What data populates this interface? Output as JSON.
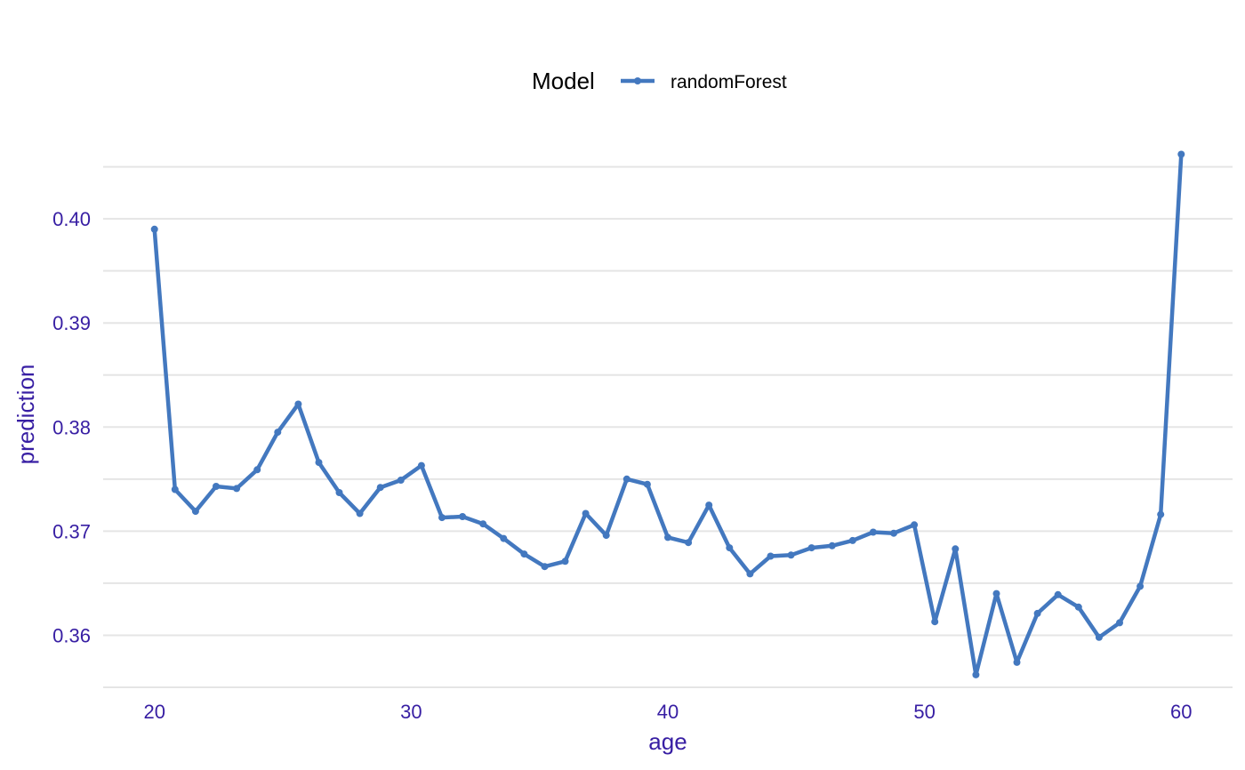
{
  "chart_data": {
    "type": "line",
    "legend": {
      "title": "Model",
      "position": "top"
    },
    "xlabel": "age",
    "ylabel": "prediction",
    "xlim": [
      18,
      62
    ],
    "ylim": [
      0.355,
      0.4065
    ],
    "x_ticks": [
      20,
      30,
      40,
      50,
      60
    ],
    "y_ticks": [
      0.36,
      0.37,
      0.38,
      0.39,
      0.4
    ],
    "y_tick_labels": [
      "0.36",
      "0.37",
      "0.38",
      "0.39",
      "0.40"
    ],
    "grid": true,
    "colors": {
      "series": "#4378bf",
      "text": "#371ea3",
      "grid": "#e5e5e5"
    },
    "series": [
      {
        "name": "randomForest",
        "x": [
          20,
          20.8,
          21.6,
          22.4,
          23.2,
          24.0,
          24.8,
          25.6,
          26.4,
          27.2,
          28.0,
          28.8,
          29.6,
          30.4,
          31.2,
          32.0,
          32.8,
          33.6,
          34.4,
          35.2,
          36.0,
          36.8,
          37.6,
          38.4,
          39.2,
          40.0,
          40.8,
          41.6,
          42.4,
          43.2,
          44.0,
          44.8,
          45.6,
          46.4,
          47.2,
          48.0,
          48.8,
          49.6,
          50.4,
          51.2,
          52.0,
          52.8,
          53.6,
          54.4,
          55.2,
          56.0,
          56.8,
          57.6,
          58.4,
          59.2,
          60.0
        ],
        "y": [
          0.399,
          0.374,
          0.3719,
          0.3743,
          0.3741,
          0.3759,
          0.3795,
          0.3822,
          0.3766,
          0.3737,
          0.3717,
          0.3742,
          0.3749,
          0.3763,
          0.3713,
          0.3714,
          0.3707,
          0.3693,
          0.3678,
          0.3666,
          0.3671,
          0.3717,
          0.3696,
          0.375,
          0.3745,
          0.3694,
          0.3689,
          0.3725,
          0.3684,
          0.3659,
          0.3676,
          0.3677,
          0.3684,
          0.3686,
          0.3691,
          0.3699,
          0.3698,
          0.3706,
          0.3613,
          0.3683,
          0.3562,
          0.364,
          0.3574,
          0.3621,
          0.3639,
          0.3627,
          0.3598,
          0.3612,
          0.3647,
          0.3716,
          0.4062
        ]
      }
    ]
  }
}
